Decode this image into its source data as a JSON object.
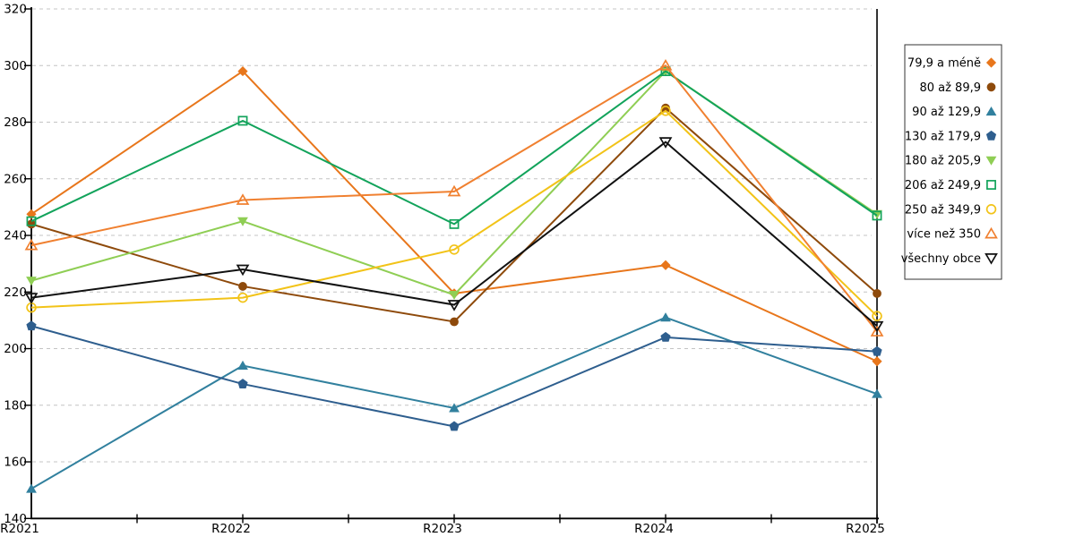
{
  "chart_data": {
    "type": "line",
    "title": "",
    "xlabel": "",
    "ylabel": "",
    "categories": [
      "R2021",
      "R2022",
      "R2023",
      "R2024",
      "R2025"
    ],
    "series": [
      {
        "name": "79,9 a méně",
        "marker": "diamond",
        "fill": "solid",
        "color": "#E8761B",
        "values": [
          247.5,
          298,
          219.5,
          229.5,
          195.5
        ]
      },
      {
        "name": "80 až 89,9",
        "marker": "circle",
        "fill": "solid",
        "color": "#8E4A0B",
        "values": [
          244,
          222,
          209.5,
          285,
          219.5
        ]
      },
      {
        "name": "90 až 129,9",
        "marker": "triangle-up",
        "fill": "solid",
        "color": "#31809E",
        "values": [
          150.5,
          194,
          179,
          211,
          184
        ]
      },
      {
        "name": "130 až 179,9",
        "marker": "pentagon",
        "fill": "solid",
        "color": "#2E5E8E",
        "values": [
          208,
          187.5,
          172.5,
          204,
          199
        ]
      },
      {
        "name": "180 až 205,9",
        "marker": "triangle-down",
        "fill": "solid",
        "color": "#8FCE54",
        "values": [
          224,
          245,
          219,
          298,
          247.5
        ]
      },
      {
        "name": "206 až 249,9",
        "marker": "square",
        "fill": "open",
        "color": "#12A35B",
        "values": [
          245,
          280.5,
          244,
          298,
          247
        ]
      },
      {
        "name": "250 až 349,9",
        "marker": "circle",
        "fill": "open",
        "color": "#F2C318",
        "values": [
          214.5,
          218,
          235,
          284,
          211.5
        ]
      },
      {
        "name": "více než 350",
        "marker": "triangle-up",
        "fill": "open",
        "color": "#F08030",
        "values": [
          236.5,
          252.5,
          255.5,
          300,
          206
        ]
      },
      {
        "name": "všechny obce",
        "marker": "triangle-down",
        "fill": "open",
        "color": "#111111",
        "values": [
          218,
          228,
          215.5,
          273,
          208
        ]
      }
    ],
    "ylim": [
      140,
      320
    ],
    "ytick_step": 20,
    "y_ticks": [
      "320",
      "300",
      "280",
      "260",
      "240",
      "220",
      "200",
      "180",
      "160",
      "140"
    ],
    "grid": "horizontal-dashed",
    "legend_position": "right",
    "annotations": {
      "vertical_marker_at": "R2025"
    }
  },
  "style": {
    "grid_color": "#C4C4C4",
    "axis_color": "#000000",
    "legend_border_color": "#333333",
    "background": "#FFFFFF"
  }
}
